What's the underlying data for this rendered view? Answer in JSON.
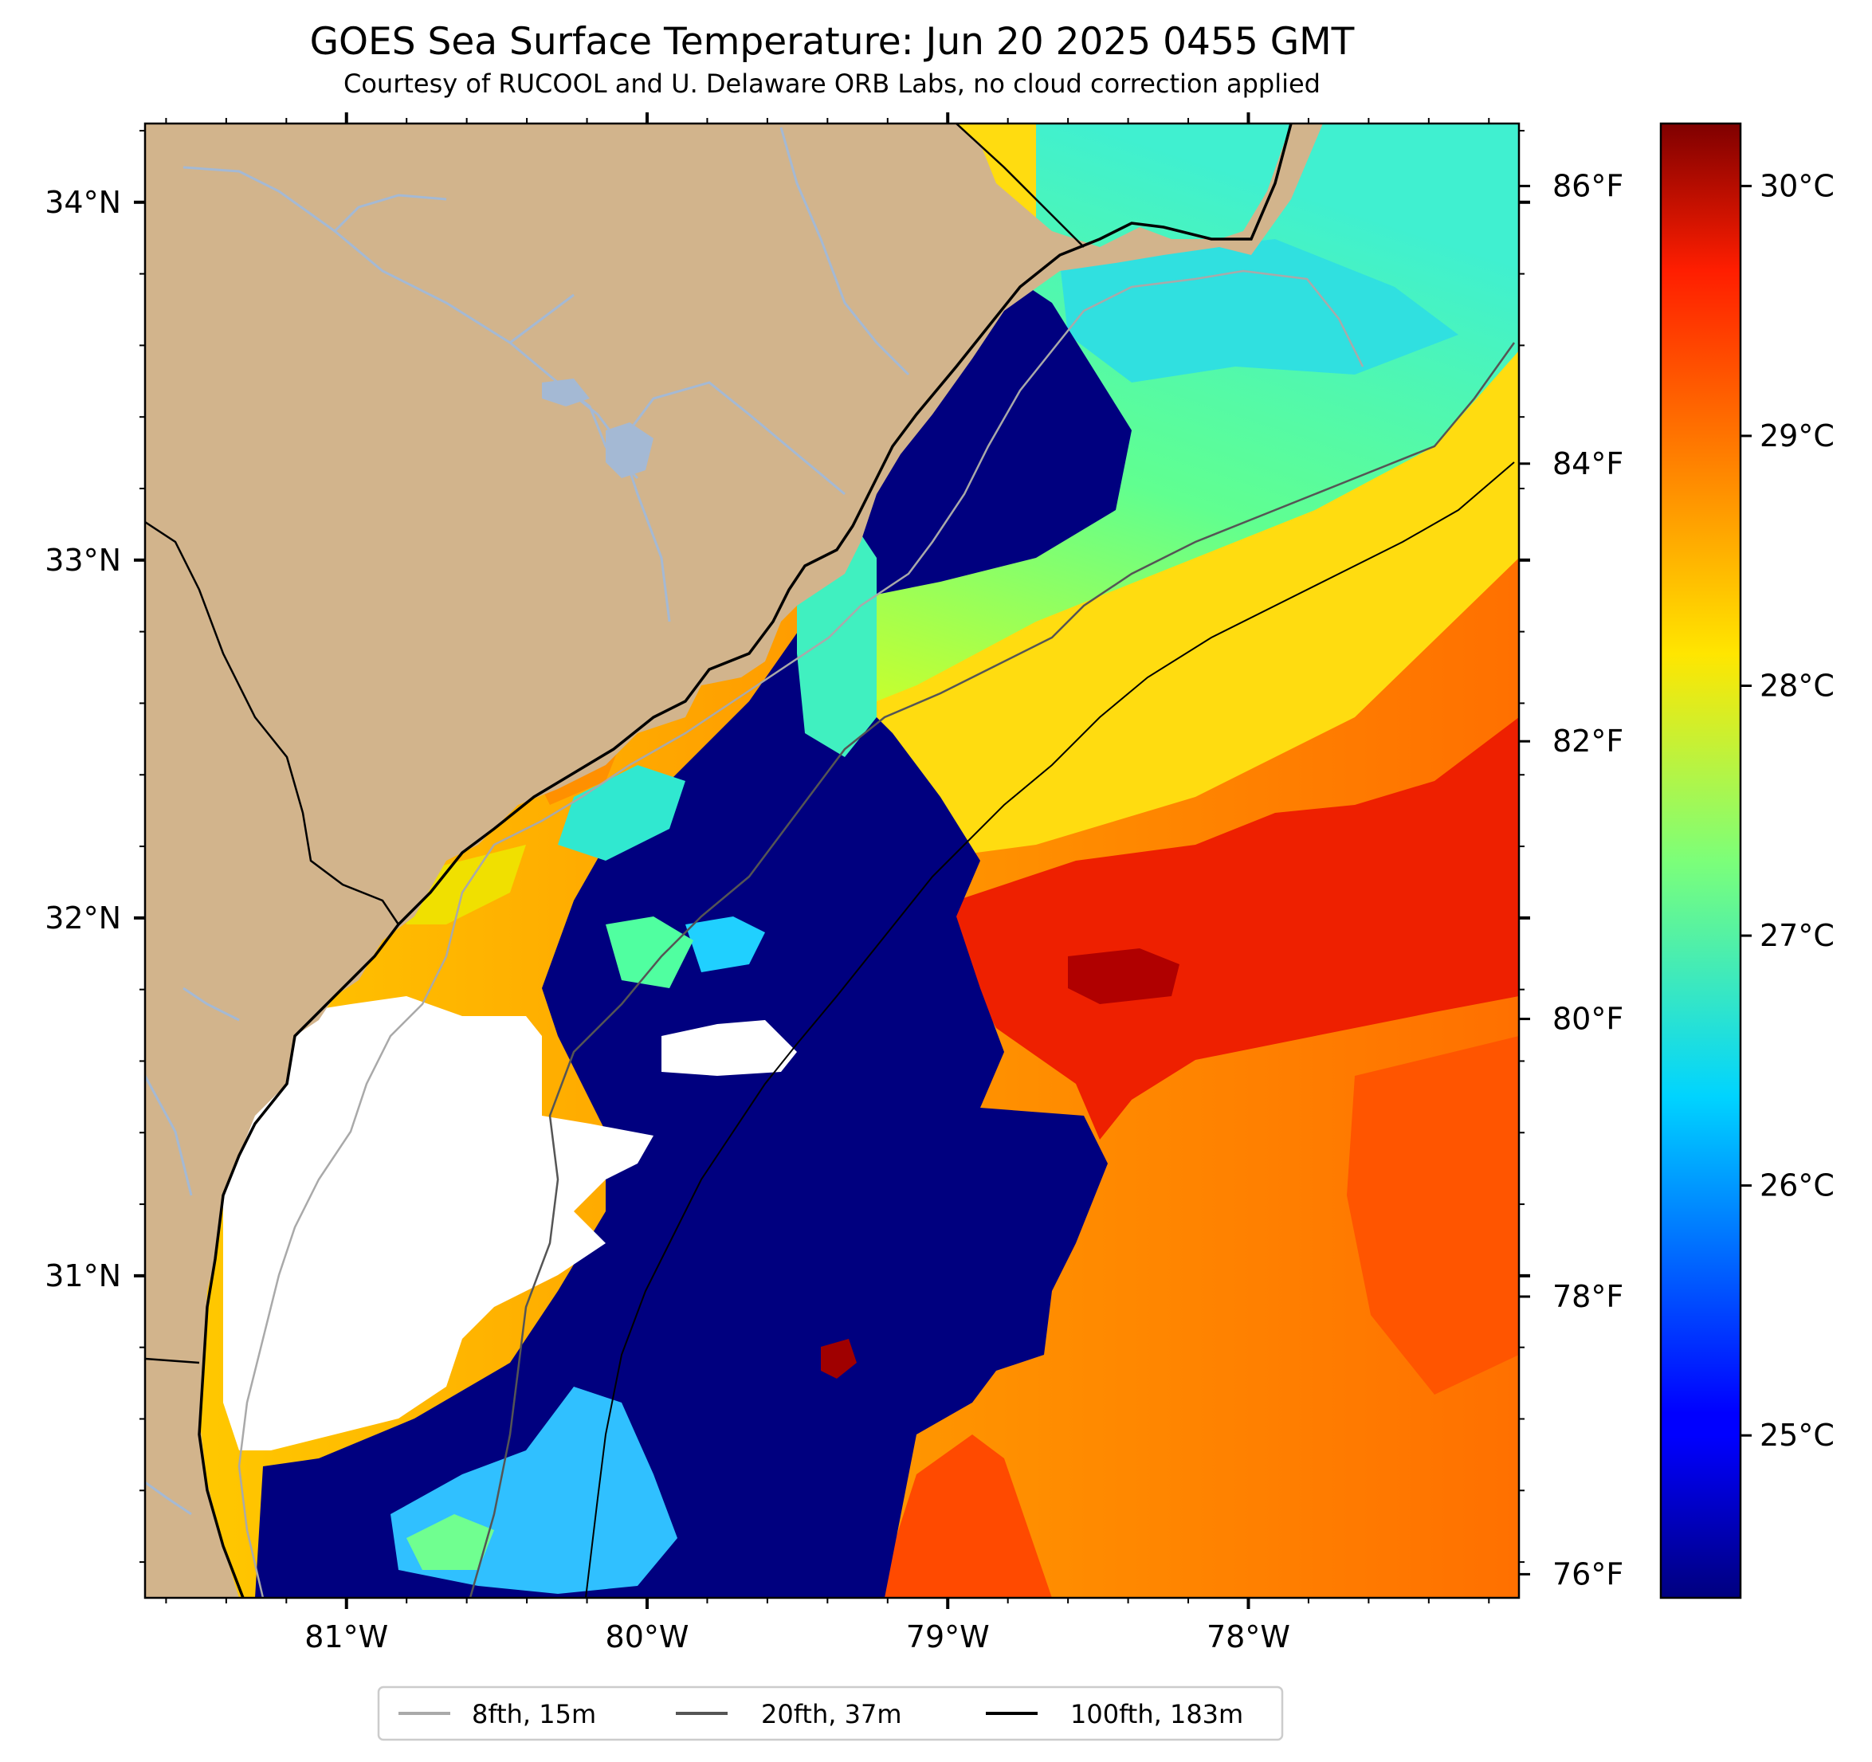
{
  "title": "GOES Sea Surface Temperature: Jun 20 2025 0455 GMT",
  "subtitle": "Courtesy of RUCOOL and U. Delaware ORB Labs, no cloud correction applied",
  "map": {
    "lon_range": [
      -81.67,
      -77.1
    ],
    "lat_range": [
      30.1,
      34.22
    ],
    "lon_ticks": [
      {
        "value": -81,
        "label": "81°W"
      },
      {
        "value": -80,
        "label": "80°W"
      },
      {
        "value": -79,
        "label": "79°W"
      },
      {
        "value": -78,
        "label": "78°W"
      }
    ],
    "lat_ticks": [
      {
        "value": 34,
        "label": "34°N"
      },
      {
        "value": 33,
        "label": "33°N"
      },
      {
        "value": 32,
        "label": "32°N"
      },
      {
        "value": 31,
        "label": "31°N"
      }
    ],
    "colors": {
      "land": "#d2b48c",
      "coastline": "#000000",
      "river": "#a4b9d4",
      "cloud_mask": "#ffffff"
    }
  },
  "colorbar": {
    "celsius_range": [
      24.35,
      30.25
    ],
    "celsius_ticks": [
      {
        "value": 25,
        "label": "25°C"
      },
      {
        "value": 26,
        "label": "26°C"
      },
      {
        "value": 27,
        "label": "27°C"
      },
      {
        "value": 28,
        "label": "28°C"
      },
      {
        "value": 29,
        "label": "29°C"
      },
      {
        "value": 30,
        "label": "30°C"
      }
    ],
    "fahrenheit_ticks": [
      {
        "value": 76,
        "label": "76°F"
      },
      {
        "value": 78,
        "label": "78°F"
      },
      {
        "value": 80,
        "label": "80°F"
      },
      {
        "value": 82,
        "label": "82°F"
      },
      {
        "value": 84,
        "label": "84°F"
      },
      {
        "value": 86,
        "label": "86°F"
      }
    ],
    "colormap": "jet"
  },
  "legend": {
    "items": [
      {
        "label": "8fth, 15m",
        "color": "#a9a9a9"
      },
      {
        "label": "20fth, 37m",
        "color": "#555555"
      },
      {
        "label": "100fth, 183m",
        "color": "#000000"
      }
    ]
  }
}
